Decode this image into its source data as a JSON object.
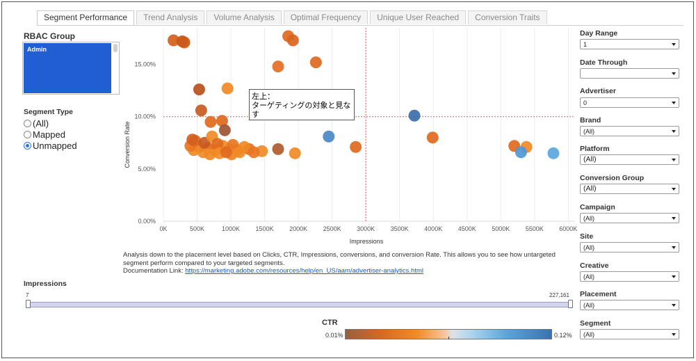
{
  "tabs": [
    "Segment Performance",
    "Trend Analysis",
    "Volume Analysis",
    "Optimal Frequency",
    "Unique User Reached",
    "Conversion Traits"
  ],
  "left": {
    "rbac_label": "RBAC Group",
    "rbac_selected": "Admin",
    "segment_type_label": "Segment Type",
    "segment_types": [
      {
        "label": "(All)",
        "selected": false
      },
      {
        "label": "Mapped",
        "selected": false
      },
      {
        "label": "Unmapped",
        "selected": true
      }
    ]
  },
  "annotation": {
    "line1": "左上：",
    "line2": "ターゲティングの対象と見なす"
  },
  "description": {
    "text": "Analysis down to the placement level based on Clicks, CTR, Impressions, conversions, and conversion Rate. This allows you to see how untargeted segment perform compared to your targeted segments.",
    "link_prefix": "Documentation Link: ",
    "link": "https://marketing.adobe.com/resources/help/en_US/aam/advertiser-analytics.html"
  },
  "impressions": {
    "label": "Impressions",
    "min": "7",
    "max": "227,161"
  },
  "ctr": {
    "label": "CTR",
    "min": "0.01%",
    "max": "0.12%"
  },
  "filters": [
    {
      "label": "Day Range",
      "value": "1"
    },
    {
      "label": "Date Through",
      "value": ""
    },
    {
      "label": "Advertiser",
      "value": "0"
    },
    {
      "label": "Brand",
      "value": "(All)"
    },
    {
      "label": "Platform",
      "value": "(All)"
    },
    {
      "label": "Conversion Group",
      "value": "(All)"
    },
    {
      "label": "Campaign",
      "value": "(All)"
    },
    {
      "label": "Site",
      "value": "(All)"
    },
    {
      "label": "Creative",
      "value": "(All)"
    },
    {
      "label": "Placement",
      "value": "(All)"
    },
    {
      "label": "Segment",
      "value": "(All)"
    }
  ],
  "colors": {
    "accent": "#1f5fd3",
    "reference_line": "#e0605a",
    "bubble_orange": "#e8721e",
    "bubble_blue": "#4f97d4"
  },
  "chart_data": {
    "type": "scatter",
    "xlabel": "Impressions",
    "ylabel": "Conversion Rate",
    "x_ticks": [
      "0K",
      "500K",
      "1000K",
      "1500K",
      "2000K",
      "2500K",
      "3000K",
      "3500K",
      "4000K",
      "4500K",
      "5000K",
      "5500K",
      "6000K"
    ],
    "y_ticks": [
      "0.00%",
      "5.00%",
      "10.00%",
      "15.00%"
    ],
    "xlim": [
      0,
      6100000
    ],
    "ylim": [
      0,
      18.5
    ],
    "ref_x": 3000000,
    "ref_y": 10,
    "grid": "vertical",
    "points": [
      {
        "x": 150000,
        "y": 17.3,
        "c": "#d4601c"
      },
      {
        "x": 280000,
        "y": 17.2,
        "c": "#c8561a"
      },
      {
        "x": 310000,
        "y": 17.1,
        "c": "#cc5a1a"
      },
      {
        "x": 1850000,
        "y": 17.7,
        "c": "#de6a20"
      },
      {
        "x": 1920000,
        "y": 17.3,
        "c": "#d8641e"
      },
      {
        "x": 1700000,
        "y": 14.8,
        "c": "#e46e22"
      },
      {
        "x": 2260000,
        "y": 15.2,
        "c": "#de6a20"
      },
      {
        "x": 530000,
        "y": 12.6,
        "c": "#b8501c"
      },
      {
        "x": 950000,
        "y": 12.7,
        "c": "#f08a26"
      },
      {
        "x": 560000,
        "y": 10.6,
        "c": "#c65a22"
      },
      {
        "x": 700000,
        "y": 9.5,
        "c": "#e06a20"
      },
      {
        "x": 870000,
        "y": 9.6,
        "c": "#dc6820"
      },
      {
        "x": 910000,
        "y": 8.7,
        "c": "#9e5434"
      },
      {
        "x": 3720000,
        "y": 10.1,
        "c": "#3d6ea8"
      },
      {
        "x": 2450000,
        "y": 8.1,
        "c": "#4a88c6"
      },
      {
        "x": 3990000,
        "y": 8.0,
        "c": "#e06a20"
      },
      {
        "x": 2850000,
        "y": 7.1,
        "c": "#e06a20"
      },
      {
        "x": 5200000,
        "y": 7.2,
        "c": "#e06a20"
      },
      {
        "x": 5380000,
        "y": 7.1,
        "c": "#f08a26"
      },
      {
        "x": 5300000,
        "y": 6.6,
        "c": "#4f97d4"
      },
      {
        "x": 5780000,
        "y": 6.5,
        "c": "#5aa6de"
      },
      {
        "x": 1700000,
        "y": 6.9,
        "c": "#b05a2c"
      },
      {
        "x": 1950000,
        "y": 6.5,
        "c": "#f08a26"
      },
      {
        "x": 1460000,
        "y": 6.7,
        "c": "#f08a26"
      },
      {
        "x": 1270000,
        "y": 6.9,
        "c": "#e46e22"
      },
      {
        "x": 1100000,
        "y": 6.8,
        "c": "#ec7e24"
      },
      {
        "x": 980000,
        "y": 6.9,
        "c": "#f28c28"
      },
      {
        "x": 880000,
        "y": 7.2,
        "c": "#f08a26"
      },
      {
        "x": 760000,
        "y": 6.8,
        "c": "#ea7a22"
      },
      {
        "x": 660000,
        "y": 7.0,
        "c": "#e46e22"
      },
      {
        "x": 590000,
        "y": 6.6,
        "c": "#f08a26"
      },
      {
        "x": 520000,
        "y": 7.1,
        "c": "#ec7e24"
      },
      {
        "x": 450000,
        "y": 6.8,
        "c": "#f08a26"
      },
      {
        "x": 400000,
        "y": 7.2,
        "c": "#e87624"
      },
      {
        "x": 470000,
        "y": 7.7,
        "c": "#e06a20"
      },
      {
        "x": 610000,
        "y": 7.5,
        "c": "#c65a22"
      },
      {
        "x": 720000,
        "y": 8.1,
        "c": "#f08a26"
      },
      {
        "x": 800000,
        "y": 7.4,
        "c": "#de6a20"
      },
      {
        "x": 1030000,
        "y": 7.3,
        "c": "#e87624"
      },
      {
        "x": 1200000,
        "y": 7.1,
        "c": "#f08a26"
      },
      {
        "x": 830000,
        "y": 6.5,
        "c": "#f28c28"
      },
      {
        "x": 1010000,
        "y": 6.4,
        "c": "#ee8226"
      },
      {
        "x": 690000,
        "y": 6.4,
        "c": "#f08a26"
      },
      {
        "x": 430000,
        "y": 7.8,
        "c": "#d4601c"
      },
      {
        "x": 1130000,
        "y": 6.6,
        "c": "#f08a26"
      },
      {
        "x": 1340000,
        "y": 6.6,
        "c": "#e87624"
      },
      {
        "x": 930000,
        "y": 6.6,
        "c": "#e06a20"
      }
    ]
  }
}
